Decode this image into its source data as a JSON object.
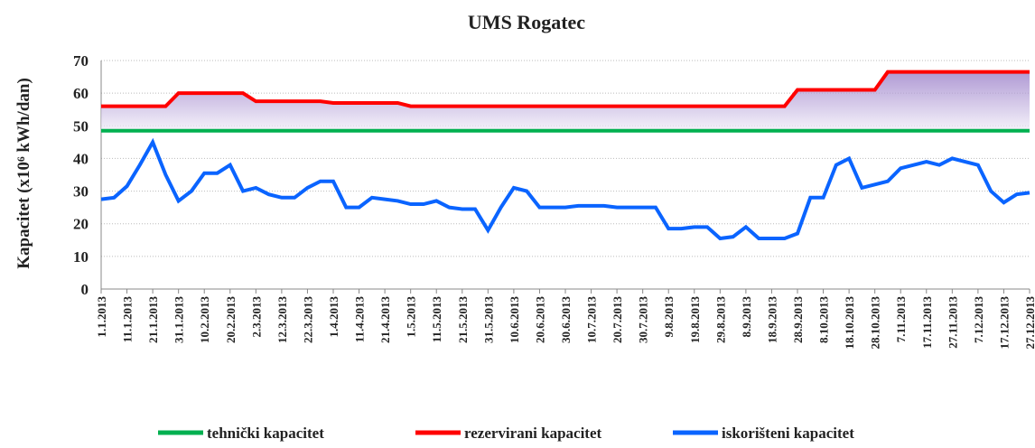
{
  "chart_data": {
    "type": "line",
    "title": "UMS Rogatec",
    "y_label": "Kapacitet (x10⁶ kWh/dan)",
    "categories": [
      "1.1.2013",
      null,
      "11.1.2013",
      null,
      "21.1.2013",
      null,
      "31.1.2013",
      null,
      "10.2.2013",
      null,
      "20.2.2013",
      null,
      "2.3.2013",
      null,
      "12.3.2013",
      null,
      "22.3.2013",
      null,
      "1.4.2013",
      null,
      "11.4.2013",
      null,
      "21.4.2013",
      null,
      "1.5.2013",
      null,
      "11.5.2013",
      null,
      "21.5.2013",
      null,
      "31.5.2013",
      null,
      "10.6.2013",
      null,
      "20.6.2013",
      null,
      "30.6.2013",
      null,
      "10.7.2013",
      null,
      "20.7.2013",
      null,
      "30.7.2013",
      null,
      "9.8.2013",
      null,
      "19.8.2013",
      null,
      "29.8.2013",
      null,
      "8.9.2013",
      null,
      "18.9.2013",
      null,
      "28.9.2013",
      null,
      "8.10.2013",
      null,
      "18.10.2013",
      null,
      "28.10.2013",
      null,
      "7.11.2013",
      null,
      "17.11.2013",
      null,
      "27.11.2013",
      null,
      "7.12.2013",
      null,
      "17.12.2013",
      null,
      "27.12.2013"
    ],
    "series": [
      {
        "name": "tehnički kapacitet",
        "color": "#00b050",
        "values": [
          48.5,
          48.5,
          48.5,
          48.5,
          48.5,
          48.5,
          48.5,
          48.5,
          48.5,
          48.5,
          48.5,
          48.5,
          48.5,
          48.5,
          48.5,
          48.5,
          48.5,
          48.5,
          48.5,
          48.5,
          48.5,
          48.5,
          48.5,
          48.5,
          48.5,
          48.5,
          48.5,
          48.5,
          48.5,
          48.5,
          48.5,
          48.5,
          48.5,
          48.5,
          48.5,
          48.5,
          48.5,
          48.5,
          48.5,
          48.5,
          48.5,
          48.5,
          48.5,
          48.5,
          48.5,
          48.5,
          48.5,
          48.5,
          48.5,
          48.5,
          48.5,
          48.5,
          48.5,
          48.5,
          48.5,
          48.5,
          48.5,
          48.5,
          48.5,
          48.5,
          48.5,
          48.5,
          48.5,
          48.5,
          48.5,
          48.5,
          48.5,
          48.5,
          48.5,
          48.5,
          48.5,
          48.5,
          48.5
        ]
      },
      {
        "name": "rezervirani kapacitet",
        "color": "#ff0000",
        "values": [
          56,
          56,
          56,
          56,
          56,
          56,
          60,
          60,
          60,
          60,
          60,
          60,
          57.5,
          57.5,
          57.5,
          57.5,
          57.5,
          57.5,
          57,
          57,
          57,
          57,
          57,
          57,
          56,
          56,
          56,
          56,
          56,
          56,
          56,
          56,
          56,
          56,
          56,
          56,
          56,
          56,
          56,
          56,
          56,
          56,
          56,
          56,
          56,
          56,
          56,
          56,
          56,
          56,
          56,
          56,
          56,
          56,
          61,
          61,
          61,
          61,
          61,
          61,
          61,
          66.5,
          66.5,
          66.5,
          66.5,
          66.5,
          66.5,
          66.5,
          66.5,
          66.5,
          66.5,
          66.5,
          66.5
        ]
      },
      {
        "name": "iskorišteni kapacitet",
        "color": "#0a64ff",
        "values": [
          27.5,
          28,
          31.5,
          38,
          45,
          35,
          27,
          30,
          35.5,
          35.5,
          38,
          30,
          31,
          29,
          28,
          28,
          31,
          33,
          33,
          25,
          25,
          28,
          27.5,
          27,
          26,
          26,
          27,
          25,
          24.5,
          24.5,
          18,
          25,
          31,
          30,
          25,
          25,
          25,
          25.5,
          25.5,
          25.5,
          25,
          25,
          25,
          25,
          18.5,
          18.5,
          19,
          19,
          15.5,
          16,
          19,
          15.5,
          15.5,
          15.5,
          17,
          28,
          28,
          38,
          40,
          31,
          32,
          33,
          37,
          38,
          39,
          38,
          40,
          39,
          38,
          30,
          26.5,
          29,
          29.5
        ]
      }
    ],
    "ylim": [
      0,
      70
    ],
    "yticks": [
      0,
      10,
      20,
      30,
      40,
      50,
      60,
      70
    ],
    "grid": true
  }
}
